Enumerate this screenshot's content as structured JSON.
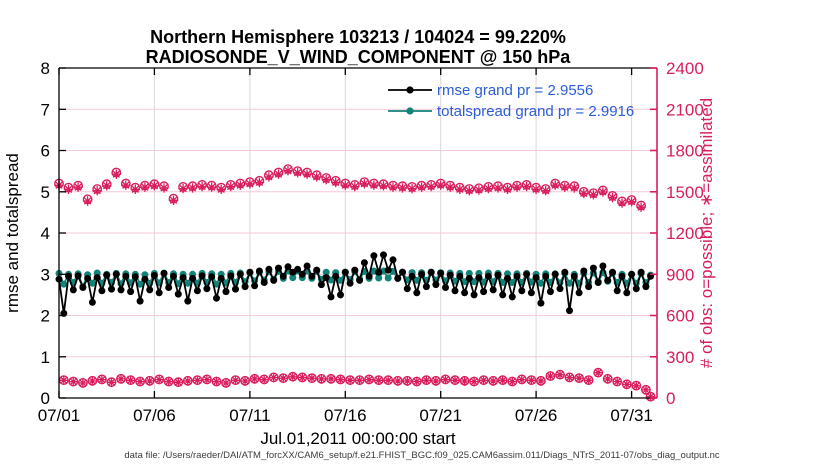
{
  "figure": {
    "title_line1": "Northern Hemisphere 103213 / 104024 = 99.220%",
    "title_line2": "RADIOSONDE_V_WIND_COMPONENT @ 150 hPa",
    "xlabel": "Jul.01,2011 00:00:00 start",
    "ylabel_left": "rmse and totalspread",
    "ylabel_right": "# of obs: o=possible; ∗=assimilated",
    "datafile_note": "data file: /Users/raeder/DAI/ATM_forcXX/CAM6_setup/f.e21.FHIST_BGC.f09_025.CAM6assim.011/Diags_NTrS_2011-07/obs_diag_output.nc"
  },
  "legend": {
    "text_color": "#2b5dd7",
    "items": [
      {
        "label": "rmse grand pr = 2.9556",
        "color": "#000000",
        "marker": "filled-circle"
      },
      {
        "label": "totalspread grand pr = 2.9916",
        "color": "#118379",
        "marker": "filled-circle"
      }
    ]
  },
  "colors": {
    "rmse": "#000000",
    "totalspread": "#118379",
    "obs": "#d81e5e",
    "grid_horizontal": "#f5c8d5",
    "grid_vertical": "#ded6d6",
    "axis_left": "#000000",
    "axis_right": "#d81e5e",
    "background": "#ffffff"
  },
  "chart_data": {
    "type": "line",
    "title": "Northern Hemisphere 103213 / 104024 = 99.220% — RADIOSONDE_V_WIND_COMPONENT @ 150 hPa",
    "x_start": "2011-07-01 00:00:00",
    "x_step_hours": 6,
    "x_units": "days since Jul.01,2011 00:00:00",
    "xlim_days": [
      0,
      31.333
    ],
    "x_tick_days": [
      0,
      5,
      10,
      15,
      20,
      25,
      30
    ],
    "x_tick_labels": [
      "07/01",
      "07/06",
      "07/11",
      "07/16",
      "07/21",
      "07/26",
      "07/31"
    ],
    "ylim_left": [
      0,
      8
    ],
    "y_ticks_left": [
      0,
      1,
      2,
      3,
      4,
      5,
      6,
      7,
      8
    ],
    "ylim_right": [
      0,
      2400
    ],
    "y_ticks_right": [
      0,
      300,
      600,
      900,
      1200,
      1500,
      1800,
      2100,
      2400
    ],
    "grid": "horizontal pink at right-axis ticks, vertical gray at x ticks",
    "legend_position": "top-center-inside, no box",
    "series": [
      {
        "name": "rmse",
        "axis": "left",
        "color": "#000000",
        "style": "line+filled-circle",
        "grand_mean": 2.9556,
        "values": [
          2.88,
          2.05,
          2.95,
          2.62,
          2.96,
          2.68,
          2.9,
          2.32,
          2.92,
          2.6,
          2.98,
          2.64,
          3.0,
          2.62,
          2.95,
          2.58,
          2.94,
          2.35,
          2.88,
          2.62,
          2.97,
          2.55,
          3.02,
          2.68,
          2.95,
          2.52,
          2.92,
          2.35,
          2.9,
          2.6,
          2.96,
          2.65,
          2.94,
          2.42,
          2.9,
          2.58,
          2.96,
          2.64,
          3.0,
          2.7,
          3.05,
          2.72,
          3.08,
          2.8,
          3.12,
          2.85,
          3.15,
          2.95,
          3.18,
          3.05,
          3.12,
          3.0,
          3.2,
          2.95,
          3.1,
          2.75,
          2.92,
          2.45,
          2.95,
          2.5,
          3.05,
          2.78,
          3.1,
          2.85,
          3.28,
          2.95,
          3.45,
          3.05,
          3.47,
          3.1,
          3.35,
          2.9,
          3.05,
          2.65,
          2.95,
          2.55,
          3.0,
          2.7,
          3.05,
          2.75,
          3.02,
          2.68,
          2.98,
          2.6,
          2.95,
          2.55,
          2.9,
          2.5,
          2.92,
          2.58,
          2.95,
          2.62,
          2.98,
          2.5,
          2.9,
          2.45,
          2.95,
          2.6,
          3.0,
          2.55,
          2.92,
          2.3,
          2.95,
          2.58,
          3.0,
          2.65,
          3.05,
          2.12,
          2.95,
          2.55,
          3.08,
          2.7,
          3.15,
          2.8,
          3.2,
          2.85,
          3.05,
          2.6,
          2.95,
          2.55,
          3.0,
          2.65,
          3.05,
          2.7,
          2.95
        ]
      },
      {
        "name": "totalspread",
        "axis": "left",
        "color": "#118379",
        "style": "line+filled-circle",
        "grand_mean": 2.9916,
        "values": [
          3.02,
          2.76,
          3.0,
          2.8,
          3.01,
          2.7,
          2.99,
          2.78,
          3.03,
          2.78,
          3.0,
          2.8,
          3.02,
          2.77,
          3.01,
          2.79,
          3.0,
          2.76,
          2.99,
          2.78,
          3.02,
          2.79,
          3.03,
          2.8,
          3.01,
          2.77,
          3.0,
          2.78,
          3.0,
          2.78,
          3.02,
          2.8,
          3.01,
          2.76,
          3.0,
          2.79,
          3.02,
          2.8,
          3.03,
          2.82,
          3.04,
          2.84,
          3.05,
          2.86,
          3.06,
          2.88,
          3.07,
          2.9,
          3.08,
          2.92,
          3.08,
          2.92,
          3.08,
          2.9,
          3.07,
          2.88,
          3.05,
          2.86,
          3.04,
          2.85,
          3.05,
          2.87,
          3.06,
          2.88,
          3.07,
          2.9,
          3.08,
          2.91,
          3.08,
          2.91,
          3.07,
          2.9,
          3.05,
          2.86,
          3.04,
          2.85,
          3.04,
          2.85,
          3.05,
          2.86,
          3.04,
          2.84,
          3.03,
          2.83,
          3.02,
          2.82,
          3.02,
          2.82,
          3.02,
          2.81,
          3.03,
          2.82,
          3.02,
          2.8,
          3.01,
          2.8,
          3.01,
          2.8,
          3.02,
          2.81,
          3.0,
          2.78,
          3.01,
          2.8,
          3.01,
          2.79,
          3.02,
          2.78,
          3.0,
          2.78,
          3.02,
          2.8,
          3.03,
          2.82,
          3.04,
          2.83,
          3.02,
          2.8,
          3.0,
          2.78,
          3.0,
          2.78,
          3.01,
          2.8,
          2.98
        ]
      },
      {
        "name": "obs_possible",
        "axis": "right",
        "color": "#d81e5e",
        "style": "open-circle markers only",
        "values": [
          1560,
          130,
          1530,
          120,
          1545,
          110,
          1445,
          125,
          1520,
          135,
          1555,
          115,
          1640,
          140,
          1560,
          130,
          1530,
          120,
          1545,
          125,
          1555,
          135,
          1540,
          120,
          1450,
          115,
          1535,
          125,
          1540,
          130,
          1550,
          135,
          1545,
          120,
          1530,
          110,
          1550,
          130,
          1560,
          125,
          1570,
          140,
          1580,
          135,
          1620,
          150,
          1640,
          145,
          1665,
          155,
          1650,
          150,
          1640,
          145,
          1620,
          140,
          1600,
          140,
          1580,
          135,
          1560,
          130,
          1550,
          130,
          1570,
          135,
          1560,
          130,
          1555,
          130,
          1545,
          125,
          1540,
          125,
          1535,
          120,
          1545,
          130,
          1550,
          125,
          1560,
          135,
          1545,
          130,
          1530,
          125,
          1520,
          120,
          1525,
          130,
          1535,
          125,
          1540,
          130,
          1530,
          120,
          1545,
          135,
          1550,
          130,
          1530,
          125,
          1520,
          160,
          1560,
          170,
          1545,
          150,
          1540,
          145,
          1500,
          130,
          1490,
          185,
          1510,
          140,
          1470,
          120,
          1430,
          100,
          1440,
          90,
          1400,
          60,
          10
        ]
      },
      {
        "name": "obs_assimilated",
        "axis": "right",
        "color": "#d81e5e",
        "style": "asterisk markers only",
        "values": [
          1548,
          129,
          1518,
          119,
          1533,
          109,
          1433,
          124,
          1508,
          134,
          1543,
          114,
          1628,
          139,
          1548,
          129,
          1518,
          119,
          1533,
          124,
          1543,
          134,
          1528,
          119,
          1438,
          114,
          1523,
          124,
          1528,
          129,
          1538,
          134,
          1533,
          119,
          1518,
          109,
          1538,
          129,
          1548,
          124,
          1558,
          139,
          1568,
          134,
          1608,
          149,
          1628,
          144,
          1653,
          154,
          1638,
          149,
          1628,
          144,
          1608,
          139,
          1588,
          139,
          1568,
          134,
          1548,
          129,
          1538,
          129,
          1558,
          134,
          1548,
          129,
          1543,
          129,
          1533,
          124,
          1528,
          124,
          1523,
          119,
          1533,
          129,
          1538,
          124,
          1548,
          134,
          1533,
          129,
          1518,
          124,
          1508,
          119,
          1513,
          129,
          1523,
          124,
          1528,
          129,
          1518,
          119,
          1533,
          134,
          1538,
          129,
          1518,
          124,
          1508,
          159,
          1548,
          169,
          1533,
          149,
          1528,
          144,
          1488,
          129,
          1478,
          184,
          1498,
          139,
          1458,
          119,
          1418,
          99,
          1428,
          89,
          1388,
          59,
          10
        ]
      }
    ]
  }
}
